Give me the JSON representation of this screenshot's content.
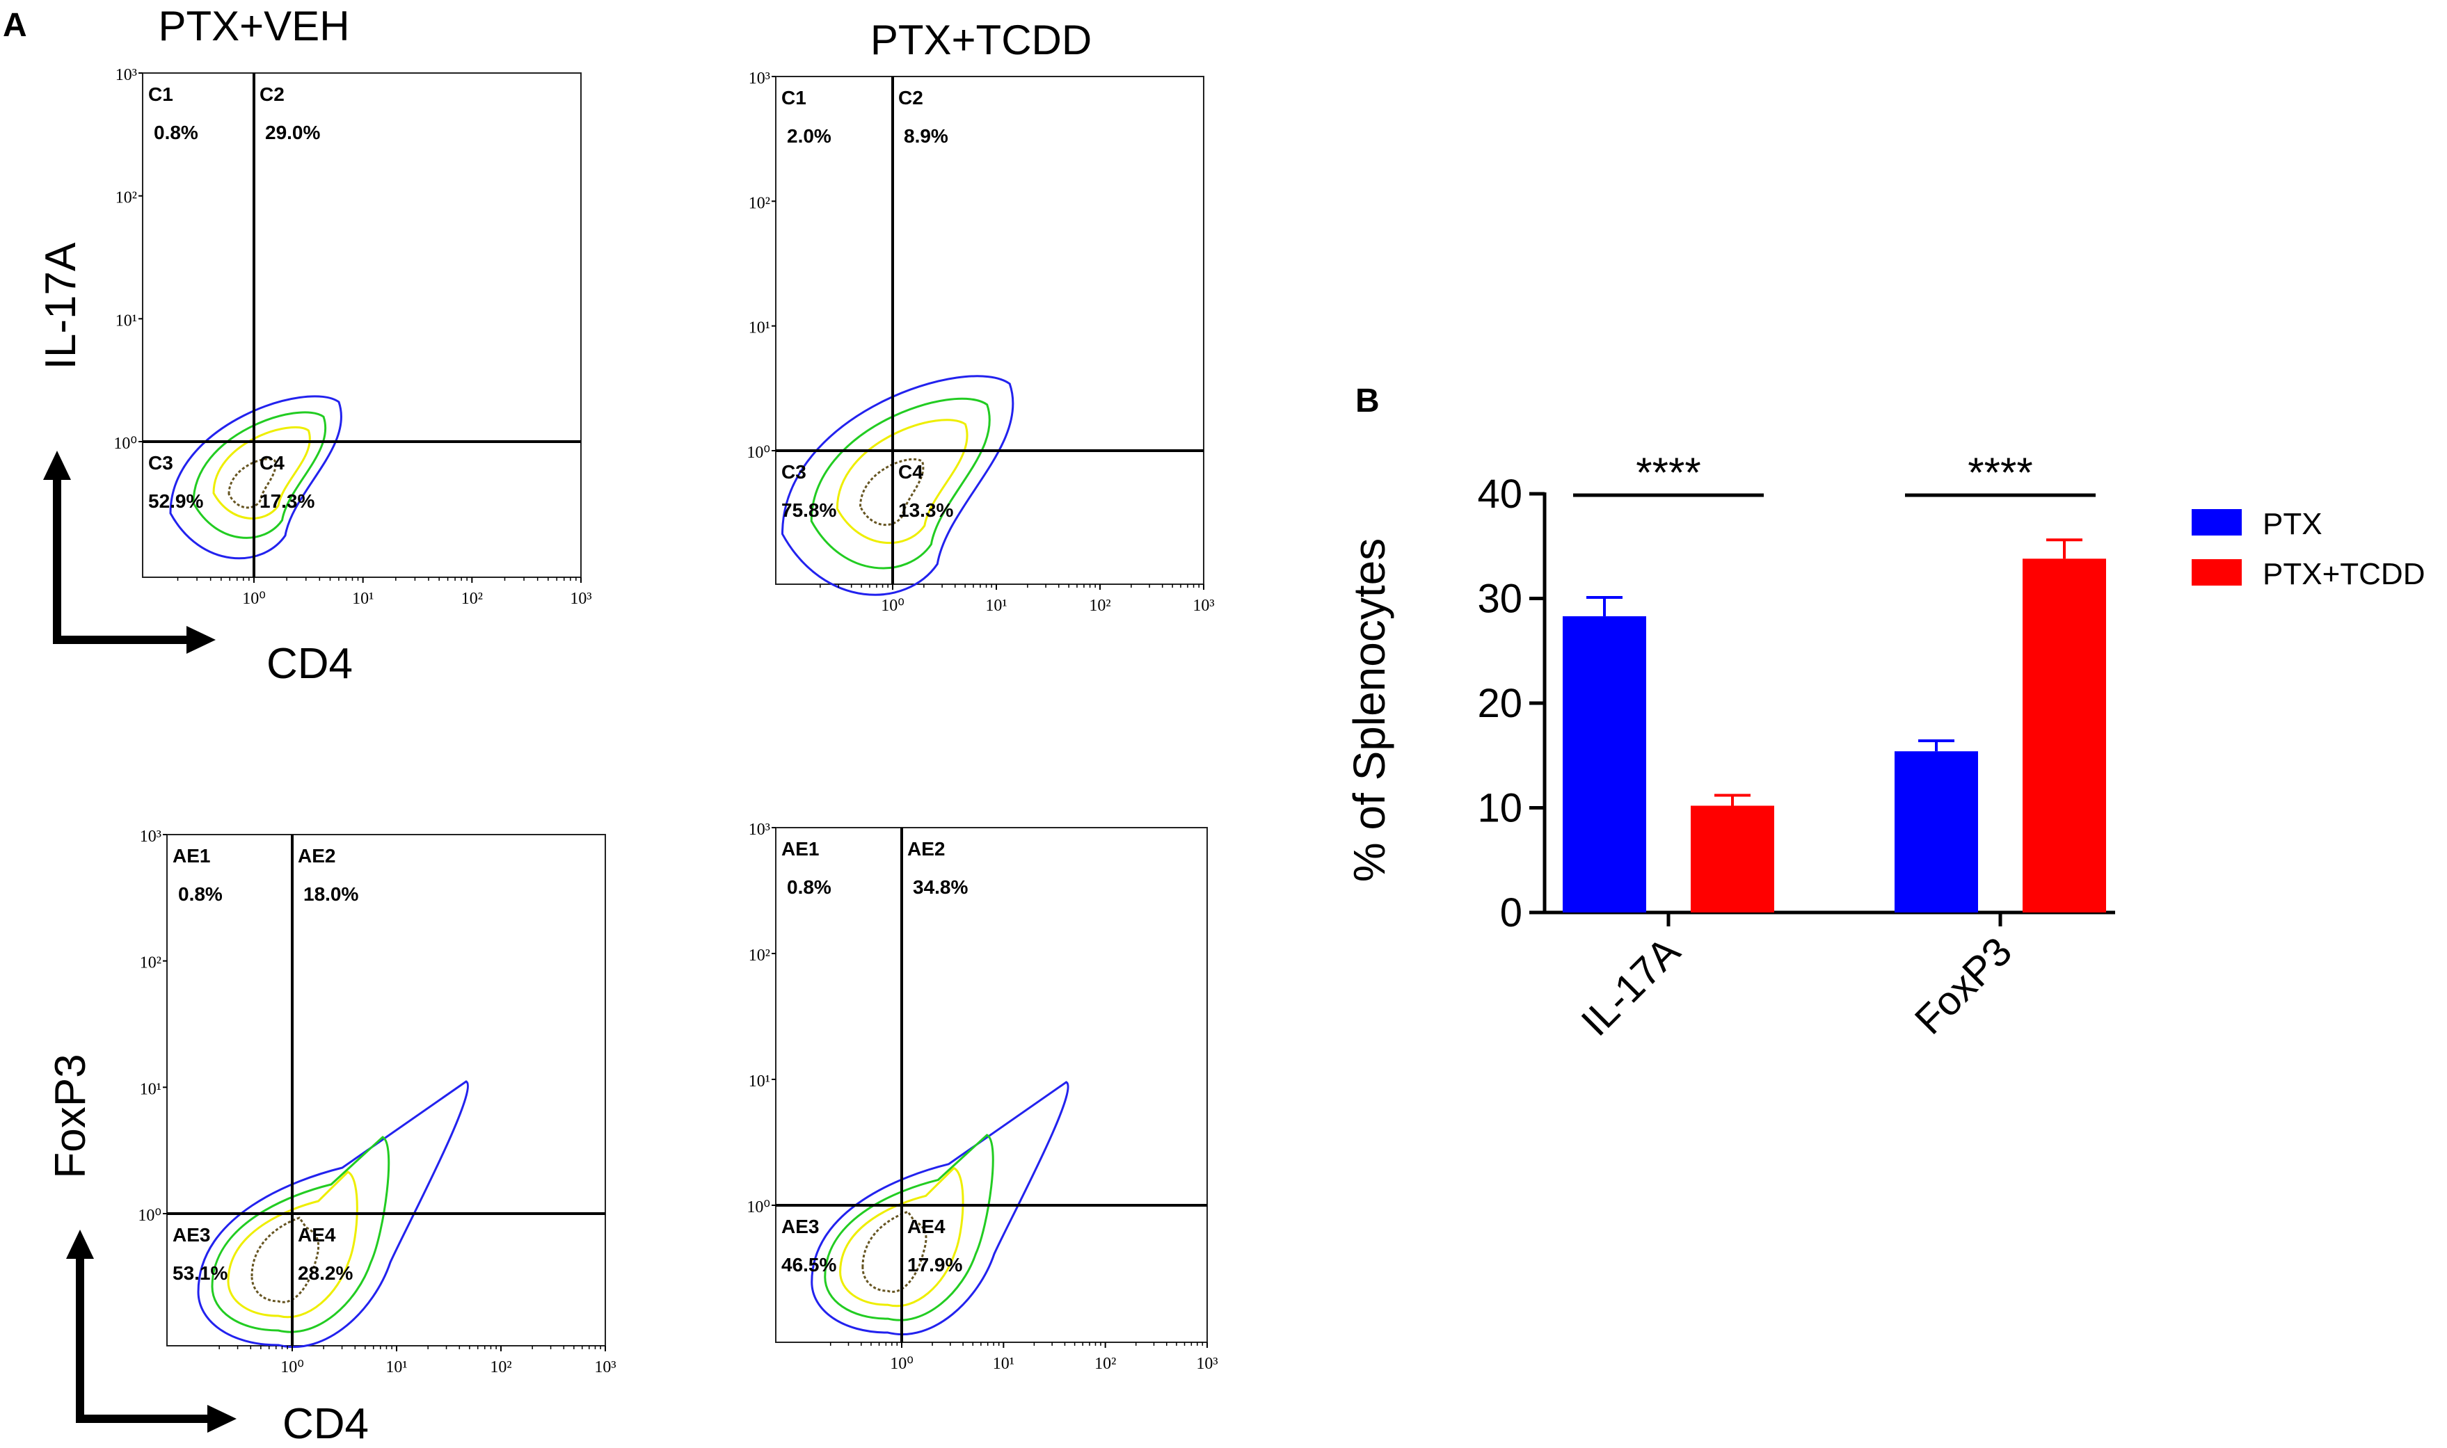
{
  "panel_a_label": "A",
  "panel_b_label": "B",
  "titles": {
    "veh": "PTX+VEH",
    "tcdd": "PTX+TCDD"
  },
  "axes": {
    "il17a": "IL-17A",
    "foxp3": "FoxP3",
    "cd4": "CD4"
  },
  "colors": {
    "ptx": "#0000ff",
    "ptx_tcdd": "#ff0000",
    "contour_outer": "#2222ee",
    "contour_green": "#22cc22",
    "contour_yellow": "#eeee00",
    "contour_core": "#665522"
  },
  "flow_plots": [
    {
      "id": "il17a-veh",
      "gates": [
        {
          "name": "C1",
          "pct": "0.8%"
        },
        {
          "name": "C2",
          "pct": "29.0%"
        },
        {
          "name": "C3",
          "pct": "52.9%"
        },
        {
          "name": "C4",
          "pct": "17.3%"
        }
      ],
      "xticks": [
        "10⁰",
        "10¹",
        "10²",
        "10³"
      ],
      "yticks": [
        "10³",
        "10²",
        "10¹",
        "10⁰"
      ]
    },
    {
      "id": "il17a-tcdd",
      "gates": [
        {
          "name": "C1",
          "pct": "2.0%"
        },
        {
          "name": "C2",
          "pct": "8.9%"
        },
        {
          "name": "C3",
          "pct": "75.8%"
        },
        {
          "name": "C4",
          "pct": "13.3%"
        }
      ],
      "xticks": [
        "10⁰",
        "10¹",
        "10²",
        "10³"
      ],
      "yticks": [
        "10³",
        "10²",
        "10¹",
        "10⁰"
      ]
    },
    {
      "id": "foxp3-veh",
      "gates": [
        {
          "name": "AE1",
          "pct": "0.8%"
        },
        {
          "name": "AE2",
          "pct": "18.0%"
        },
        {
          "name": "AE3",
          "pct": "53.1%"
        },
        {
          "name": "AE4",
          "pct": "28.2%"
        }
      ],
      "xticks": [
        "10⁰",
        "10¹",
        "10²",
        "10³"
      ],
      "yticks": [
        "10³",
        "10²",
        "10¹",
        "10⁰"
      ]
    },
    {
      "id": "foxp3-tcdd",
      "gates": [
        {
          "name": "AE1",
          "pct": "0.8%"
        },
        {
          "name": "AE2",
          "pct": "34.8%"
        },
        {
          "name": "AE3",
          "pct": "46.5%"
        },
        {
          "name": "AE4",
          "pct": "17.9%"
        }
      ],
      "xticks": [
        "10⁰",
        "10¹",
        "10²",
        "10³"
      ],
      "yticks": [
        "10³",
        "10²",
        "10¹",
        "10⁰"
      ]
    }
  ],
  "chart_data": {
    "type": "bar",
    "title": "",
    "xlabel": "",
    "ylabel": "% of Splenocytes",
    "categories": [
      "IL-17A",
      "FoxP3"
    ],
    "series": [
      {
        "name": "PTX",
        "values": [
          28.3,
          15.4
        ],
        "errors": [
          1.8,
          1.0
        ]
      },
      {
        "name": "PTX+TCDD",
        "values": [
          10.2,
          33.8
        ],
        "errors": [
          1.0,
          1.8
        ]
      }
    ],
    "ylim": [
      0,
      40
    ],
    "yticks": [
      0,
      10,
      20,
      30,
      40
    ],
    "significance": [
      "****",
      "****"
    ],
    "legend": "right"
  }
}
